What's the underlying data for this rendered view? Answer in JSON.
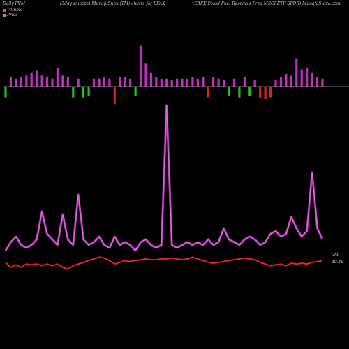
{
  "header": {
    "left": "Daily PVM",
    "middle": "(5day smooth) MunafaSutra(TM) charts for EFAX",
    "right": "(EAFE Fossil Fuel Reserves Free   MSCI ETF SPDR) MunafaSutra.com"
  },
  "legend": {
    "volume": "Volume",
    "price": "Price",
    "volume_color": "#e040e0",
    "price_color": "#f08040"
  },
  "right_labels": {
    "volume_value": "0M",
    "price_value": "49.48"
  },
  "colors": {
    "background": "#000000",
    "baseline": "#9a9a9a",
    "volume_line": "#b535b5",
    "volume_line_glow": "#e066e0",
    "price_line": "#ee2020",
    "bar_magenta": "#c030c0",
    "bar_green": "#20c020",
    "bar_red": "#e02020"
  },
  "chart_data": {
    "type": "line",
    "x_count": 62,
    "bars": [
      {
        "dir": "down",
        "color": "green",
        "v": 0.35
      },
      {
        "dir": "up",
        "color": "magenta",
        "v": 0.3
      },
      {
        "dir": "up",
        "color": "magenta",
        "v": 0.25
      },
      {
        "dir": "up",
        "color": "magenta",
        "v": 0.3
      },
      {
        "dir": "up",
        "color": "magenta",
        "v": 0.35
      },
      {
        "dir": "up",
        "color": "magenta",
        "v": 0.45
      },
      {
        "dir": "up",
        "color": "magenta",
        "v": 0.5
      },
      {
        "dir": "up",
        "color": "magenta",
        "v": 0.35
      },
      {
        "dir": "up",
        "color": "magenta",
        "v": 0.3
      },
      {
        "dir": "up",
        "color": "magenta",
        "v": 0.25
      },
      {
        "dir": "up",
        "color": "magenta",
        "v": 0.6
      },
      {
        "dir": "up",
        "color": "magenta",
        "v": 0.35
      },
      {
        "dir": "up",
        "color": "magenta",
        "v": 0.3
      },
      {
        "dir": "down",
        "color": "green",
        "v": 0.35
      },
      {
        "dir": "up",
        "color": "magenta",
        "v": 0.25
      },
      {
        "dir": "down",
        "color": "green",
        "v": 0.35
      },
      {
        "dir": "down",
        "color": "green",
        "v": 0.3
      },
      {
        "dir": "up",
        "color": "magenta",
        "v": 0.25
      },
      {
        "dir": "up",
        "color": "magenta",
        "v": 0.25
      },
      {
        "dir": "up",
        "color": "magenta",
        "v": 0.3
      },
      {
        "dir": "up",
        "color": "magenta",
        "v": 0.25
      },
      {
        "dir": "down",
        "color": "red",
        "v": 0.55
      },
      {
        "dir": "up",
        "color": "magenta",
        "v": 0.3
      },
      {
        "dir": "up",
        "color": "magenta",
        "v": 0.3
      },
      {
        "dir": "up",
        "color": "magenta",
        "v": 0.25
      },
      {
        "dir": "down",
        "color": "green",
        "v": 0.3
      },
      {
        "dir": "up",
        "color": "magenta",
        "v": 1.3
      },
      {
        "dir": "up",
        "color": "magenta",
        "v": 0.75
      },
      {
        "dir": "up",
        "color": "magenta",
        "v": 0.45
      },
      {
        "dir": "up",
        "color": "magenta",
        "v": 0.3
      },
      {
        "dir": "up",
        "color": "magenta",
        "v": 0.25
      },
      {
        "dir": "up",
        "color": "magenta",
        "v": 0.25
      },
      {
        "dir": "up",
        "color": "magenta",
        "v": 0.2
      },
      {
        "dir": "up",
        "color": "magenta",
        "v": 0.25
      },
      {
        "dir": "up",
        "color": "magenta",
        "v": 0.25
      },
      {
        "dir": "up",
        "color": "magenta",
        "v": 0.25
      },
      {
        "dir": "up",
        "color": "magenta",
        "v": 0.3
      },
      {
        "dir": "up",
        "color": "magenta",
        "v": 0.25
      },
      {
        "dir": "up",
        "color": "magenta",
        "v": 0.3
      },
      {
        "dir": "down",
        "color": "red",
        "v": 0.35
      },
      {
        "dir": "up",
        "color": "magenta",
        "v": 0.3
      },
      {
        "dir": "up",
        "color": "magenta",
        "v": 0.25
      },
      {
        "dir": "up",
        "color": "magenta",
        "v": 0.2
      },
      {
        "dir": "down",
        "color": "green",
        "v": 0.3
      },
      {
        "dir": "up",
        "color": "magenta",
        "v": 0.25
      },
      {
        "dir": "down",
        "color": "green",
        "v": 0.35
      },
      {
        "dir": "up",
        "color": "magenta",
        "v": 0.3
      },
      {
        "dir": "down",
        "color": "green",
        "v": 0.3
      },
      {
        "dir": "up",
        "color": "magenta",
        "v": 0.2
      },
      {
        "dir": "down",
        "color": "red",
        "v": 0.35
      },
      {
        "dir": "down",
        "color": "red",
        "v": 0.4
      },
      {
        "dir": "down",
        "color": "red",
        "v": 0.35
      },
      {
        "dir": "up",
        "color": "magenta",
        "v": 0.2
      },
      {
        "dir": "up",
        "color": "magenta",
        "v": 0.3
      },
      {
        "dir": "up",
        "color": "magenta",
        "v": 0.4
      },
      {
        "dir": "up",
        "color": "magenta",
        "v": 0.35
      },
      {
        "dir": "up",
        "color": "magenta",
        "v": 0.9
      },
      {
        "dir": "up",
        "color": "magenta",
        "v": 0.55
      },
      {
        "dir": "up",
        "color": "magenta",
        "v": 0.6
      },
      {
        "dir": "up",
        "color": "magenta",
        "v": 0.45
      },
      {
        "dir": "up",
        "color": "magenta",
        "v": 0.3
      },
      {
        "dir": "up",
        "color": "magenta",
        "v": 0.25
      }
    ],
    "series": [
      {
        "name": "Volume",
        "values": [
          0.2,
          0.35,
          0.45,
          0.3,
          0.25,
          0.3,
          0.4,
          0.9,
          0.5,
          0.4,
          0.3,
          0.85,
          0.4,
          0.3,
          1.2,
          0.4,
          0.3,
          0.35,
          0.45,
          0.3,
          0.25,
          0.45,
          0.3,
          0.35,
          0.3,
          0.2,
          0.35,
          0.4,
          0.3,
          0.25,
          0.3,
          2.8,
          0.3,
          0.25,
          0.3,
          0.35,
          0.3,
          0.35,
          0.3,
          0.4,
          0.3,
          0.35,
          0.6,
          0.4,
          0.35,
          0.3,
          0.4,
          0.45,
          0.4,
          0.3,
          0.35,
          0.5,
          0.55,
          0.45,
          0.5,
          0.8,
          0.6,
          0.45,
          0.55,
          1.6,
          0.6,
          0.4
        ]
      },
      {
        "name": "Price",
        "values": [
          49.4,
          49.1,
          49.25,
          49.1,
          49.3,
          49.25,
          49.3,
          49.2,
          49.3,
          49.2,
          49.3,
          49.1,
          49.0,
          49.2,
          49.3,
          49.4,
          49.5,
          49.6,
          49.7,
          49.65,
          49.5,
          49.3,
          49.4,
          49.5,
          49.45,
          49.5,
          49.55,
          49.6,
          49.55,
          49.55,
          49.6,
          49.6,
          49.65,
          49.6,
          49.55,
          49.6,
          49.7,
          49.6,
          49.5,
          49.4,
          49.35,
          49.4,
          49.45,
          49.5,
          49.55,
          49.6,
          49.65,
          49.6,
          49.55,
          49.4,
          49.3,
          49.2,
          49.25,
          49.3,
          49.2,
          49.35,
          49.3,
          49.35,
          49.3,
          49.4,
          49.45,
          49.48
        ]
      }
    ],
    "legend_position": "top-left",
    "grid": false
  }
}
